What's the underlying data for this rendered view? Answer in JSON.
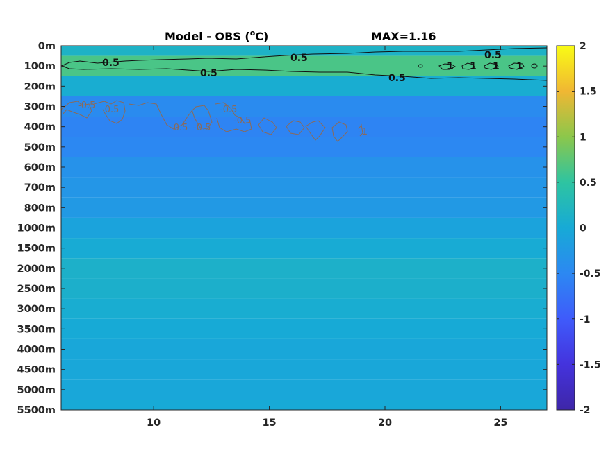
{
  "chart_data": {
    "type": "heatmap",
    "title": "Model - OBS (",
    "title_unit_sup": "o",
    "title_unit_tail": "C)",
    "max_label": "MAX=1.16",
    "xlabel": "",
    "ylabel": "",
    "x_range": [
      6,
      27
    ],
    "x_ticks": [
      "10",
      "15",
      "20",
      "25"
    ],
    "x_tick_values": [
      10,
      15,
      20,
      25
    ],
    "y_tick_labels": [
      "0m",
      "100m",
      "200m",
      "300m",
      "400m",
      "500m",
      "600m",
      "700m",
      "800m",
      "1000m",
      "1500m",
      "2000m",
      "2500m",
      "3000m",
      "3500m",
      "4000m",
      "4500m",
      "5000m",
      "5500m"
    ],
    "colorbar": {
      "min": -2,
      "max": 2,
      "ticks": [
        "2",
        "1.5",
        "1",
        "0.5",
        "0",
        "-0.5",
        "-1",
        "-1.5",
        "-2"
      ],
      "tick_values": [
        2,
        1.5,
        1,
        0.5,
        0,
        -0.5,
        -1,
        -1.5,
        -2
      ],
      "colormap": "parula"
    },
    "layers": [
      {
        "depth": "0m",
        "value": 0.15
      },
      {
        "depth": "100m",
        "value": 0.65
      },
      {
        "depth": "200m",
        "value": 0.05
      },
      {
        "depth": "300m",
        "value": -0.45
      },
      {
        "depth": "400m",
        "value": -0.55
      },
      {
        "depth": "500m",
        "value": -0.5
      },
      {
        "depth": "600m",
        "value": -0.35
      },
      {
        "depth": "700m",
        "value": -0.3
      },
      {
        "depth": "800m",
        "value": -0.25
      },
      {
        "depth": "1000m",
        "value": -0.1
      },
      {
        "depth": "1500m",
        "value": 0.02
      },
      {
        "depth": "2000m",
        "value": 0.12
      },
      {
        "depth": "2500m",
        "value": 0.1
      },
      {
        "depth": "3000m",
        "value": 0.05
      },
      {
        "depth": "3500m",
        "value": 0.0
      },
      {
        "depth": "4000m",
        "value": -0.05
      },
      {
        "depth": "4500m",
        "value": -0.05
      },
      {
        "depth": "5000m",
        "value": -0.05
      },
      {
        "depth": "5500m",
        "value": 0.0
      }
    ],
    "contours": [
      {
        "level": "0.5",
        "color": "#111111"
      },
      {
        "level": "1",
        "color": "#111111"
      },
      {
        "level": "-0.5",
        "color": "#8a6a5a"
      },
      {
        "level": "-1",
        "color": "#8a6a5a"
      }
    ]
  }
}
